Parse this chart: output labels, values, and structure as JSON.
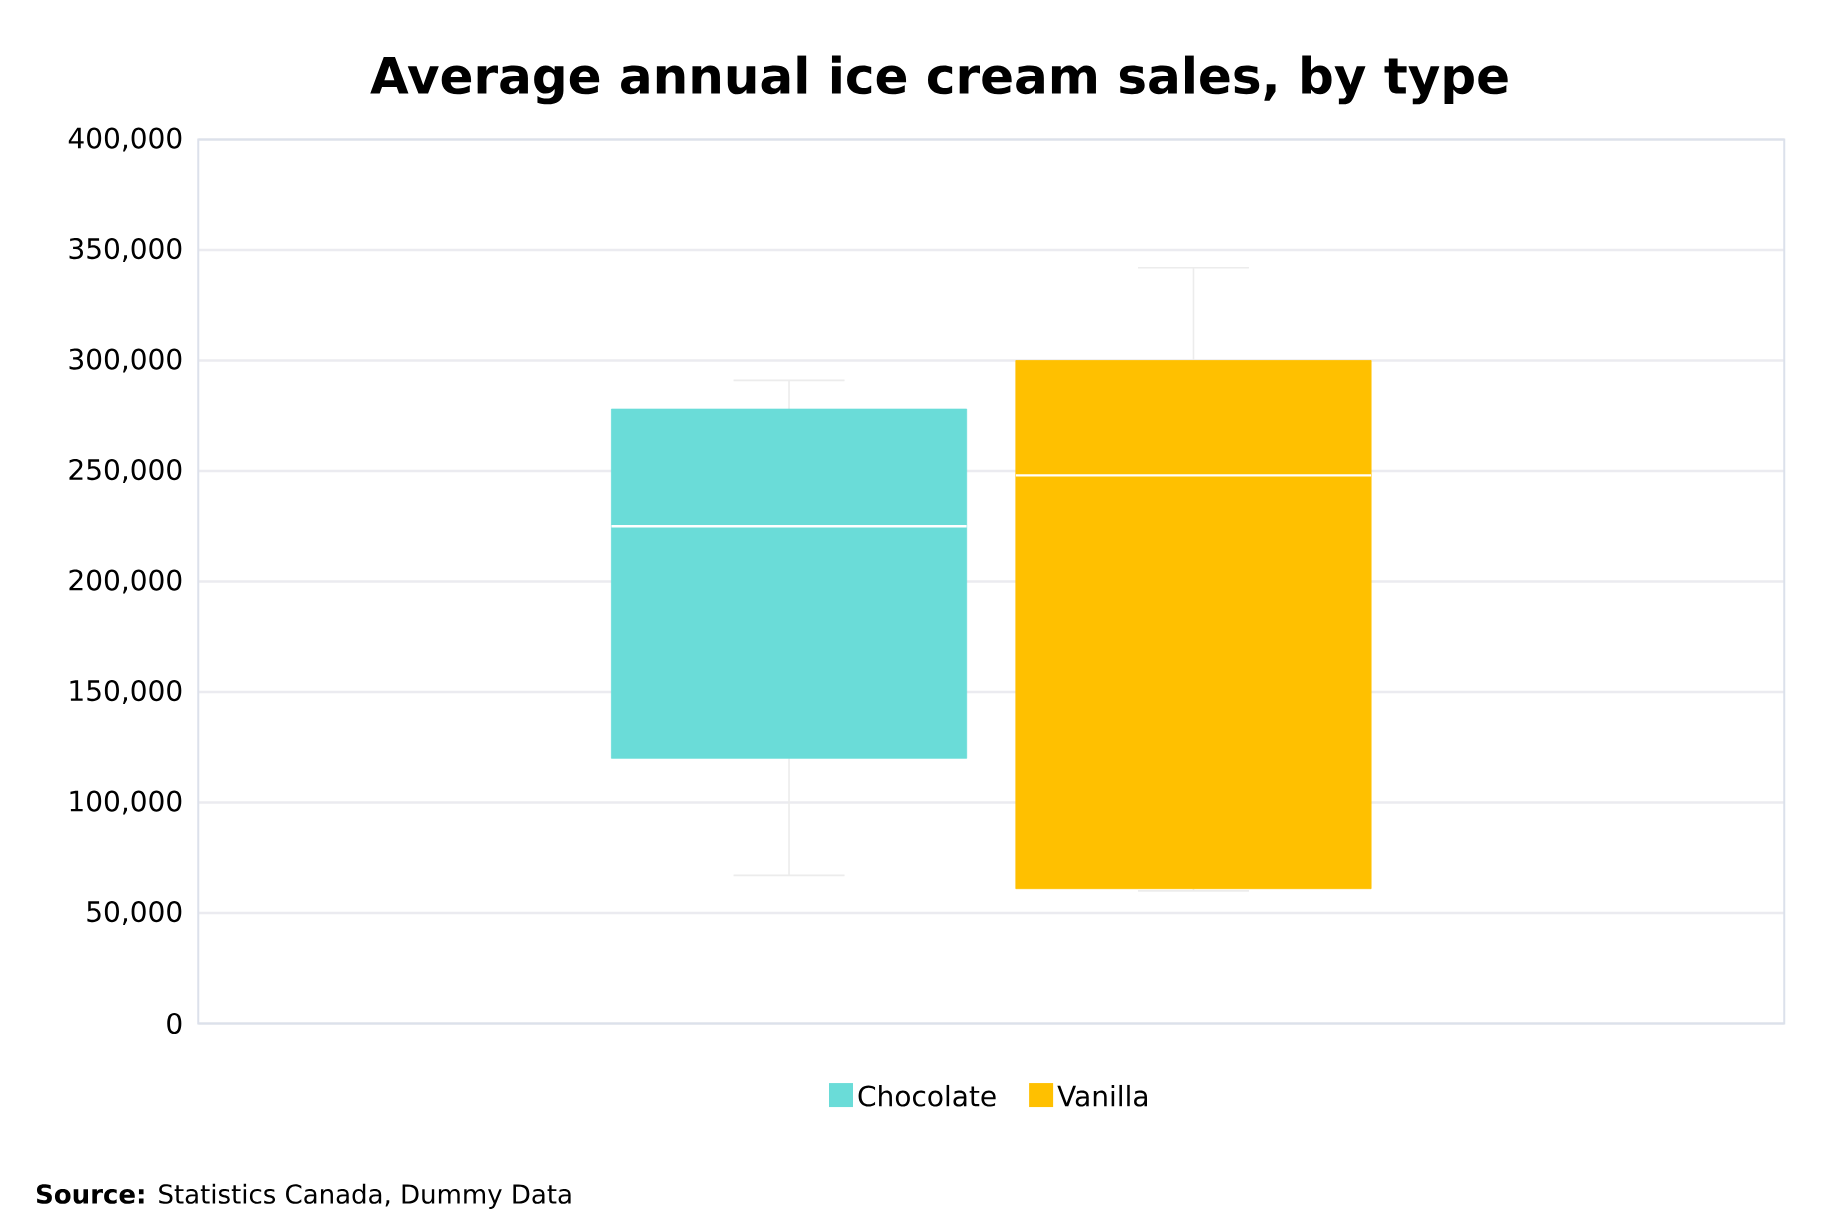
{
  "chart_data": {
    "type": "box",
    "title": "Average annual ice cream sales, by type",
    "categories": [
      null
    ],
    "series": [
      {
        "name": "Chocolate",
        "color": "#6adcd8",
        "boxes": [
          {
            "low": 67000,
            "q1": 120000,
            "median": 225000,
            "q3": 278000,
            "high": 291000
          }
        ]
      },
      {
        "name": "Vanilla",
        "color": "#ffc000",
        "boxes": [
          {
            "low": 60000,
            "q1": 61000,
            "median": 248000,
            "q3": 300000,
            "high": 342000
          }
        ]
      }
    ],
    "ylim": [
      0,
      400000
    ],
    "yticks": [
      {
        "value": 0,
        "label": "0"
      },
      {
        "value": 50000,
        "label": "50,000"
      },
      {
        "value": 100000,
        "label": "100,000"
      },
      {
        "value": 150000,
        "label": "150,000"
      },
      {
        "value": 200000,
        "label": "200,000"
      },
      {
        "value": 250000,
        "label": "250,000"
      },
      {
        "value": 300000,
        "label": "300,000"
      },
      {
        "value": 350000,
        "label": "350,000"
      },
      {
        "value": 400000,
        "label": "400,000"
      }
    ],
    "grid": "y",
    "legend": "bottom",
    "annotations": [
      "**Source:** Statistics Canada, Dummy Data"
    ]
  }
}
